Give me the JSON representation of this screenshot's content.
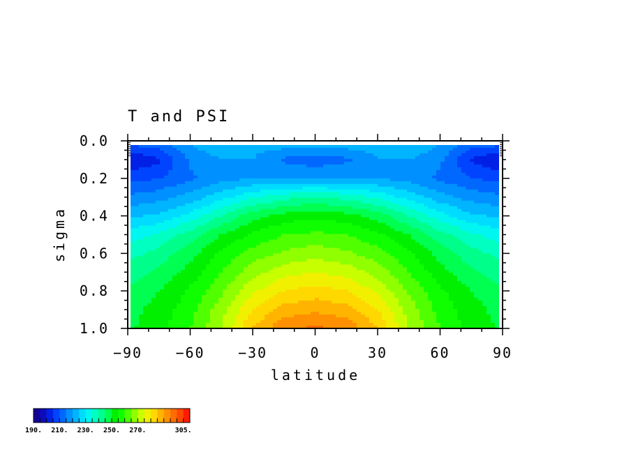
{
  "chart_data": {
    "type": "heatmap",
    "title": "T and PSI",
    "xlabel": "latitude",
    "ylabel": "sigma",
    "xlim": [
      -90,
      90
    ],
    "ylim": [
      1.0,
      0.0
    ],
    "x_ticks": [
      -90,
      -60,
      -30,
      0,
      30,
      60,
      90
    ],
    "x_tick_labels": [
      "−90",
      "−60",
      "−30",
      "0",
      "30",
      "60",
      "90"
    ],
    "y_ticks": [
      0.0,
      0.2,
      0.4,
      0.6,
      0.8,
      1.0
    ],
    "y_tick_labels": [
      "0.0",
      "0.2",
      "0.4",
      "0.6",
      "0.8",
      "1.0"
    ],
    "x": [
      -90,
      -75,
      -60,
      -45,
      -30,
      -15,
      0,
      15,
      30,
      45,
      60,
      75,
      90
    ],
    "y": [
      0.025,
      0.1,
      0.2,
      0.3,
      0.4,
      0.5,
      0.6,
      0.7,
      0.8,
      0.9,
      1.0
    ],
    "z": [
      [
        210,
        212,
        220,
        224,
        222,
        222,
        222,
        222,
        222,
        224,
        220,
        212,
        210
      ],
      [
        200,
        204,
        216,
        220,
        220,
        214,
        212,
        214,
        220,
        220,
        216,
        204,
        200
      ],
      [
        208,
        210,
        214,
        218,
        220,
        220,
        220,
        220,
        220,
        218,
        214,
        210,
        208
      ],
      [
        216,
        218,
        222,
        228,
        234,
        238,
        240,
        238,
        234,
        228,
        222,
        218,
        216
      ],
      [
        224,
        226,
        232,
        240,
        248,
        252,
        254,
        252,
        248,
        240,
        232,
        226,
        224
      ],
      [
        232,
        236,
        242,
        250,
        256,
        260,
        261,
        260,
        256,
        250,
        242,
        236,
        232
      ],
      [
        238,
        242,
        248,
        256,
        262,
        266,
        268,
        266,
        262,
        256,
        248,
        242,
        238
      ],
      [
        242,
        246,
        252,
        260,
        268,
        273,
        275,
        273,
        268,
        260,
        252,
        246,
        242
      ],
      [
        246,
        250,
        256,
        264,
        274,
        280,
        282,
        280,
        274,
        264,
        256,
        250,
        246
      ],
      [
        248,
        252,
        258,
        268,
        280,
        287,
        289,
        287,
        280,
        268,
        258,
        252,
        248
      ],
      [
        249,
        253,
        260,
        270,
        285,
        294,
        296,
        294,
        285,
        270,
        260,
        253,
        249
      ]
    ],
    "colorbar": {
      "levels": [
        190,
        195,
        200,
        205,
        210,
        215,
        220,
        225,
        230,
        235,
        240,
        245,
        250,
        255,
        260,
        265,
        270,
        275,
        280,
        285,
        290,
        295,
        300,
        305
      ],
      "colors": [
        "#140094",
        "#0c0cbe",
        "#0020e6",
        "#0044ff",
        "#0068ff",
        "#0090ff",
        "#00b4ff",
        "#00dcff",
        "#00f6f0",
        "#00ffc0",
        "#00ff8a",
        "#00ff50",
        "#00f000",
        "#10ff00",
        "#50ff00",
        "#90ff00",
        "#c8ff00",
        "#f0f000",
        "#ffd800",
        "#ffb400",
        "#ff9000",
        "#ff6c00",
        "#ff4800",
        "#ff1c00"
      ],
      "tick_labels": [
        "190.",
        "210.",
        "230.",
        "250.",
        "270.",
        "305."
      ]
    }
  }
}
